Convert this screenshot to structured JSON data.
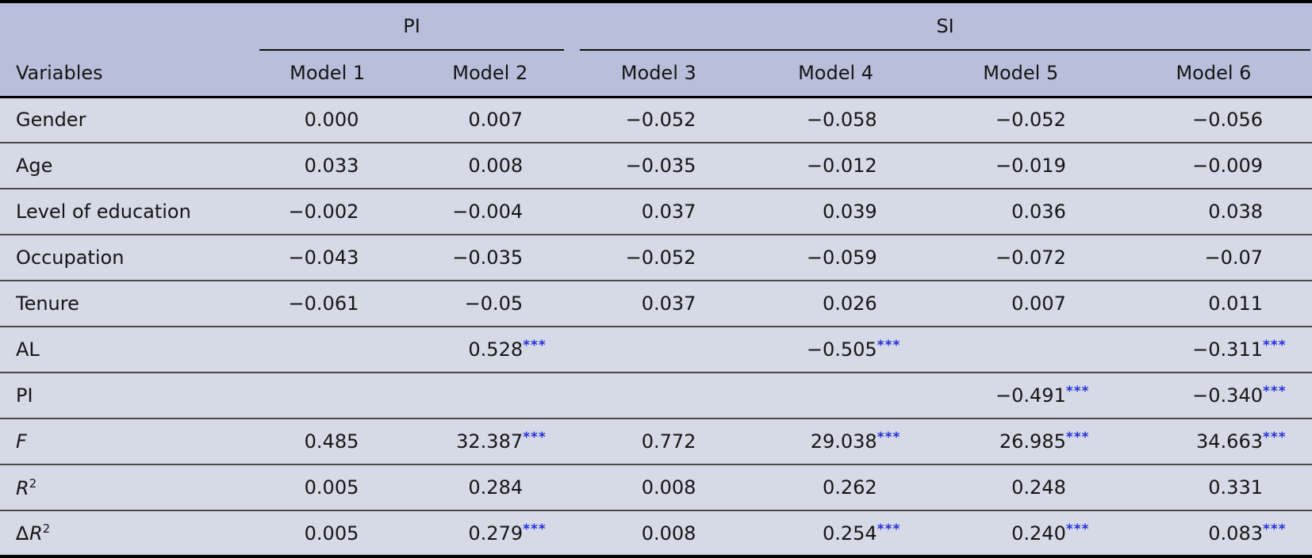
{
  "table": {
    "col_groups": [
      {
        "label": "PI",
        "span": 2
      },
      {
        "label": "SI",
        "span": 4
      }
    ],
    "header": {
      "variables_label": "Variables",
      "models": [
        "Model 1",
        "Model 2",
        "Model 3",
        "Model 4",
        "Model 5",
        "Model 6"
      ]
    },
    "rows": [
      {
        "label": "Gender",
        "values": [
          "0.000",
          "0.007",
          "−0.052",
          "−0.058",
          "−0.052",
          "−0.056"
        ],
        "sig": [
          "",
          "",
          "",
          "",
          "",
          ""
        ]
      },
      {
        "label": "Age",
        "values": [
          "0.033",
          "0.008",
          "−0.035",
          "−0.012",
          "−0.019",
          "−0.009"
        ],
        "sig": [
          "",
          "",
          "",
          "",
          "",
          ""
        ]
      },
      {
        "label": "Level of education",
        "values": [
          "−0.002",
          "−0.004",
          "0.037",
          "0.039",
          "0.036",
          "0.038"
        ],
        "sig": [
          "",
          "",
          "",
          "",
          "",
          ""
        ]
      },
      {
        "label": "Occupation",
        "values": [
          "−0.043",
          "−0.035",
          "−0.052",
          "−0.059",
          "−0.072",
          "−0.07"
        ],
        "sig": [
          "",
          "",
          "",
          "",
          "",
          ""
        ]
      },
      {
        "label": "Tenure",
        "values": [
          "−0.061",
          "−0.05",
          "0.037",
          "0.026",
          "0.007",
          "0.011"
        ],
        "sig": [
          "",
          "",
          "",
          "",
          "",
          ""
        ]
      },
      {
        "label": "AL",
        "values": [
          "",
          "0.528",
          "",
          "−0.505",
          "",
          "−0.311"
        ],
        "sig": [
          "",
          "***",
          "",
          "***",
          "",
          "***"
        ]
      },
      {
        "label": "PI",
        "values": [
          "",
          "",
          "",
          "",
          "−0.491",
          "−0.340"
        ],
        "sig": [
          "",
          "",
          "",
          "",
          "***",
          "***"
        ]
      },
      {
        "label": "F",
        "label_italic": true,
        "values": [
          "0.485",
          "32.387",
          "0.772",
          "29.038",
          "26.985",
          "34.663"
        ],
        "sig": [
          "",
          "***",
          "",
          "***",
          "***",
          "***"
        ]
      },
      {
        "label": "R",
        "label_italic": true,
        "label_sup": "2",
        "values": [
          "0.005",
          "0.284",
          "0.008",
          "0.262",
          "0.248",
          "0.331"
        ],
        "sig": [
          "",
          "",
          "",
          "",
          "",
          ""
        ]
      },
      {
        "label": "R",
        "label_prefix": "∆",
        "label_italic": true,
        "label_sup": "2",
        "values": [
          "0.005",
          "0.279",
          "0.008",
          "0.254",
          "0.240",
          "0.083"
        ],
        "sig": [
          "",
          "***",
          "",
          "***",
          "***",
          "***"
        ]
      }
    ]
  },
  "colors": {
    "header_background": "#b9bfdb",
    "row_background": "#d6d9e6",
    "significance": "#2230dc",
    "heavy_rule": "#000000",
    "row_rule": "#4a4a4a",
    "text": "#151515"
  }
}
